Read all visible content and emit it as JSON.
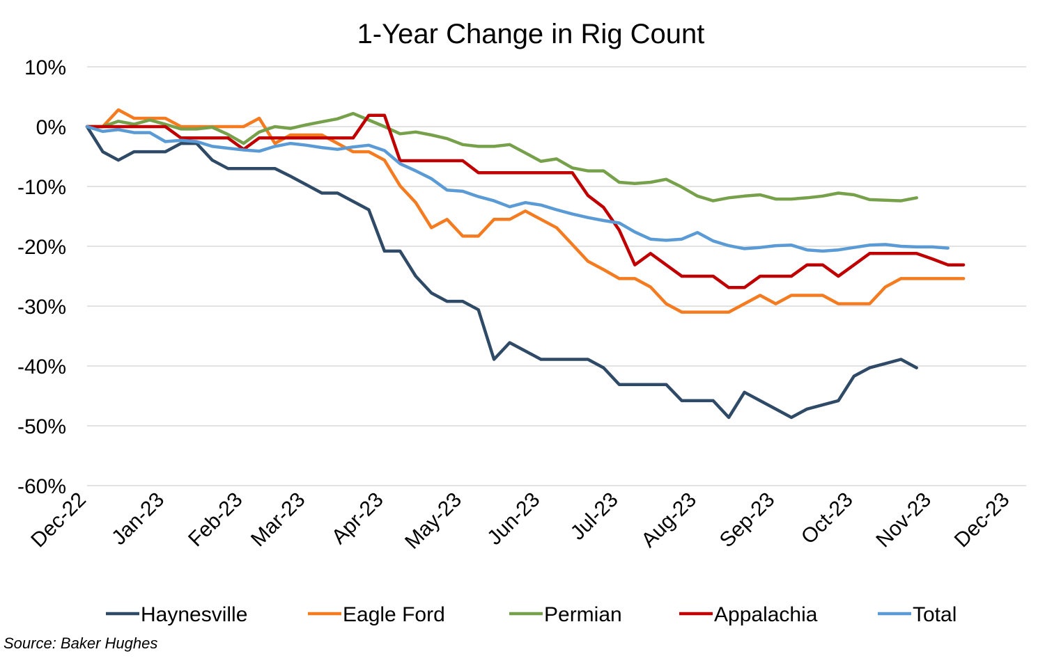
{
  "chart_data": {
    "type": "line",
    "title": "1-Year Change in Rig Count",
    "xlabel": "",
    "ylabel": "",
    "ylim": [
      -60,
      10
    ],
    "ytick_values": [
      10,
      0,
      -10,
      -20,
      -30,
      -40,
      -50,
      -60
    ],
    "ytick_labels": [
      "10%",
      "0%",
      "-10%",
      "-20%",
      "-30%",
      "-40%",
      "-50%",
      "-60%"
    ],
    "x_tick_labels": [
      "Dec-22",
      "Jan-23",
      "Feb-23",
      "Mar-23",
      "Apr-23",
      "May-23",
      "Jun-23",
      "Jul-23",
      "Aug-23",
      "Sep-23",
      "Oct-23",
      "Nov-23",
      "Dec-23"
    ],
    "x_tick_indices": [
      0,
      5,
      10,
      14,
      19,
      24,
      29,
      34,
      39,
      44,
      49,
      54,
      59
    ],
    "x_count": 61,
    "grid": true,
    "legend_position": "bottom",
    "series": [
      {
        "name": "Haynesville",
        "color": "#2E4A67",
        "values": [
          0,
          -4.2,
          -5.6,
          -4.2,
          -4.2,
          -4.2,
          -2.8,
          -2.8,
          -5.6,
          -7,
          -7,
          -7,
          -7,
          -8.3,
          -9.7,
          -11.1,
          -11.1,
          -12.5,
          -13.9,
          -20.8,
          -20.8,
          -25,
          -27.8,
          -29.2,
          -29.2,
          -30.6,
          -38.9,
          -36.1,
          -37.5,
          -38.9,
          -38.9,
          -38.9,
          -38.9,
          -40.3,
          -43.1,
          -43.1,
          -43.1,
          -43.1,
          -45.8,
          -45.8,
          -45.8,
          -48.6,
          -44.4,
          -45.8,
          -47.2,
          -48.6,
          -47.2,
          -46.5,
          -45.8,
          -41.7,
          -40.3,
          -39.6,
          -38.9,
          -40.3
        ]
      },
      {
        "name": "Eagle Ford",
        "color": "#F47B20",
        "values": [
          0,
          0,
          2.8,
          1.4,
          1.4,
          1.4,
          0,
          0,
          0,
          0,
          0,
          1.4,
          -2.8,
          -1.4,
          -1.4,
          -1.4,
          -2.8,
          -4.2,
          -4.2,
          -5.6,
          -9.9,
          -12.7,
          -16.9,
          -15.5,
          -18.3,
          -18.3,
          -15.5,
          -15.5,
          -14.1,
          -15.5,
          -16.9,
          -19.7,
          -22.5,
          -23.9,
          -25.4,
          -25.4,
          -26.8,
          -29.6,
          -31,
          -31,
          -31,
          -31,
          -29.6,
          -28.2,
          -29.6,
          -28.2,
          -28.2,
          -28.2,
          -29.6,
          -29.6,
          -29.6,
          -26.8,
          -25.4,
          -25.4,
          -25.4,
          -25.4,
          -25.4
        ]
      },
      {
        "name": "Permian",
        "color": "#76A04A",
        "values": [
          0,
          0,
          0.9,
          0.4,
          1.1,
          0.4,
          -0.4,
          -0.4,
          -0.1,
          -1.3,
          -2.8,
          -0.9,
          0,
          -0.3,
          0.3,
          0.8,
          1.3,
          2.2,
          1.1,
          0,
          -1.2,
          -0.9,
          -1.4,
          -2,
          -3,
          -3.3,
          -3.3,
          -3,
          -4.4,
          -5.8,
          -5.4,
          -6.9,
          -7.4,
          -7.4,
          -9.3,
          -9.5,
          -9.3,
          -8.8,
          -10.1,
          -11.6,
          -12.4,
          -11.9,
          -11.6,
          -11.4,
          -12.1,
          -12.1,
          -11.9,
          -11.6,
          -11.1,
          -11.4,
          -12.2,
          -12.3,
          -12.4,
          -11.9
        ]
      },
      {
        "name": "Appalachia",
        "color": "#C00000",
        "values": [
          0,
          0,
          0,
          0,
          0,
          0,
          -1.9,
          -1.9,
          -1.9,
          -1.9,
          -3.8,
          -1.9,
          -1.9,
          -1.9,
          -1.9,
          -1.9,
          -1.9,
          -1.9,
          1.9,
          1.9,
          -5.7,
          -5.7,
          -5.7,
          -5.7,
          -5.7,
          -7.7,
          -7.7,
          -7.7,
          -7.7,
          -7.7,
          -7.7,
          -7.7,
          -11.5,
          -13.5,
          -17.3,
          -23.1,
          -21.2,
          -23.1,
          -25,
          -25,
          -25,
          -26.9,
          -26.9,
          -25,
          -25,
          -25,
          -23.1,
          -23.1,
          -25,
          -23.1,
          -21.2,
          -21.2,
          -21.2,
          -21.2,
          -22.1,
          -23.1,
          -23.1
        ]
      },
      {
        "name": "Total",
        "color": "#5B9BD5",
        "values": [
          0,
          -0.8,
          -0.5,
          -1,
          -1,
          -2.5,
          -2.3,
          -2.5,
          -3.3,
          -3.6,
          -3.9,
          -4.1,
          -3.3,
          -2.8,
          -3.1,
          -3.5,
          -3.8,
          -3.4,
          -3.1,
          -4,
          -6.2,
          -7.4,
          -8.7,
          -10.6,
          -10.8,
          -11.7,
          -12.4,
          -13.4,
          -12.7,
          -13.1,
          -13.9,
          -14.6,
          -15.2,
          -15.7,
          -16.1,
          -17.6,
          -18.8,
          -19,
          -18.8,
          -17.7,
          -19.1,
          -19.9,
          -20.4,
          -20.2,
          -19.9,
          -19.8,
          -20.6,
          -20.8,
          -20.6,
          -20.2,
          -19.8,
          -19.7,
          -20,
          -20.1,
          -20.1,
          -20.3
        ]
      }
    ]
  },
  "source_note": "Source: Baker Hughes"
}
